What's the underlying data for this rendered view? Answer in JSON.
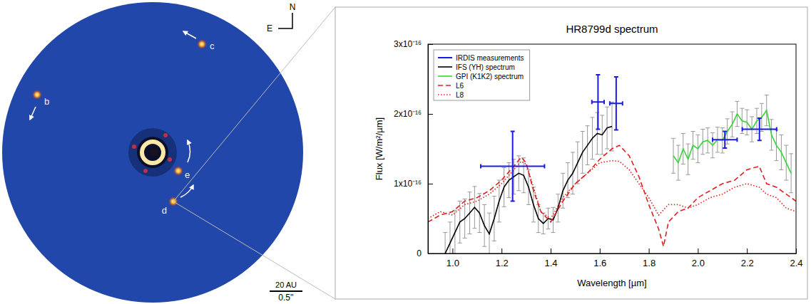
{
  "image_panel": {
    "compass": {
      "north": "N",
      "east": "E"
    },
    "planets": [
      "b",
      "c",
      "e",
      "d"
    ],
    "scale_bar": {
      "length": "20 AU",
      "angle": "0.5''"
    }
  },
  "chart_data": {
    "type": "line",
    "title": "HR8799d spectrum",
    "xlabel": "Wavelength [µm]",
    "ylabel": "Flux [W/m²/µm]",
    "xlim": [
      0.9,
      2.4
    ],
    "xticks": [
      {
        "value": 1,
        "label": "1.0"
      },
      1.2,
      1.4,
      1.6,
      1.8,
      {
        "value": 2,
        "label": "2.0"
      },
      2.2,
      2.4
    ],
    "ylim": [
      0,
      3e-16
    ],
    "yticks": [
      0,
      {
        "value": 1e-16,
        "label": "1x10⁻¹⁶"
      },
      {
        "value": 2e-16,
        "label": "2x10⁻¹⁶"
      },
      {
        "value": 3e-16,
        "label": "3x10⁻¹⁶"
      }
    ],
    "grid": false,
    "legend": "upper left",
    "series": [
      {
        "name": "IRDIS measurements",
        "type": "errorbar",
        "color": "#1c1ce0",
        "x": [
          1.245,
          1.593,
          1.667,
          2.11,
          2.251
        ],
        "values": [
          1.25e-16,
          2.17e-16,
          2.15e-16,
          1.63e-16,
          1.78e-16
        ],
        "xerr": [
          0.13,
          0.025,
          0.026,
          0.05,
          0.07
        ],
        "yerr": [
          5e-17,
          3.9e-17,
          3.8e-17,
          1.2e-17,
          1.6e-17
        ]
      },
      {
        "name": "IFS (YH) spectrum",
        "type": "line",
        "color": "#000000",
        "line_style": "solid",
        "x": [
          0.97,
          0.99,
          1.01,
          1.03,
          1.05,
          1.07,
          1.09,
          1.11,
          1.13,
          1.15,
          1.17,
          1.19,
          1.21,
          1.23,
          1.25,
          1.27,
          1.29,
          1.31,
          1.33,
          1.35,
          1.37,
          1.39,
          1.41,
          1.43,
          1.45,
          1.47,
          1.49,
          1.51,
          1.53,
          1.55,
          1.57,
          1.59,
          1.61,
          1.63,
          1.65
        ],
        "values": [
          0,
          1.5e-17,
          3e-17,
          4.5e-17,
          5e-17,
          5.8e-17,
          6.6e-17,
          5.8e-17,
          4e-17,
          2.8e-17,
          5e-17,
          7.5e-17,
          9.5e-17,
          1.05e-16,
          1.1e-16,
          1.15e-16,
          1.12e-16,
          9.5e-17,
          7e-17,
          5e-17,
          4.3e-17,
          5e-17,
          4.8e-17,
          6.5e-17,
          9e-17,
          1.05e-16,
          1.15e-16,
          1.3e-16,
          1.45e-16,
          1.55e-16,
          1.65e-16,
          1.72e-16,
          1.7e-16,
          1.8e-16,
          1.82e-16
        ],
        "yerr": [
          3e-17,
          3e-17,
          3.2e-17,
          3e-17,
          2.8e-17,
          3e-17,
          3e-17,
          2.8e-17,
          3e-17,
          3e-17,
          3.2e-17,
          3e-17,
          2.8e-17,
          2.5e-17,
          2.5e-17,
          2.5e-17,
          2.5e-17,
          2.5e-17,
          2.5e-17,
          2e-17,
          1.5e-17,
          1.5e-17,
          1.8e-17,
          2e-17,
          2.5e-17,
          2.5e-17,
          3e-17,
          3e-17,
          3e-17,
          2.8e-17,
          3e-17,
          3e-17,
          2.8e-17,
          3e-17,
          3.5e-17
        ]
      },
      {
        "name": "GPI (K1K2) spectrum",
        "type": "line",
        "color": "#33d633",
        "line_style": "solid",
        "x": [
          1.9,
          1.92,
          1.94,
          1.96,
          1.98,
          2.0,
          2.02,
          2.04,
          2.06,
          2.08,
          2.1,
          2.12,
          2.14,
          2.16,
          2.18,
          2.2,
          2.22,
          2.24,
          2.26,
          2.28,
          2.3,
          2.32,
          2.34,
          2.36,
          2.38
        ],
        "values": [
          1.4e-16,
          1.3e-16,
          1.5e-16,
          1.35e-16,
          1.55e-16,
          1.5e-16,
          1.6e-16,
          1.62e-16,
          1.55e-16,
          1.63e-16,
          1.62e-16,
          1.75e-16,
          1.85e-16,
          2e-16,
          1.9e-16,
          1.88e-16,
          1.78e-16,
          1.9e-16,
          1.95e-16,
          2.05e-16,
          1.7e-16,
          1.55e-16,
          1.45e-16,
          1.3e-16,
          1.15e-16
        ],
        "yerr": [
          2.5e-17,
          2.5e-17,
          2.2e-17,
          2.2e-17,
          2e-17,
          2e-17,
          1.8e-17,
          1.8e-17,
          1.8e-17,
          1.8e-17,
          1.8e-17,
          1.8e-17,
          1.8e-17,
          1.8e-17,
          1.8e-17,
          1.8e-17,
          1.8e-17,
          1.8e-17,
          2e-17,
          2.2e-17,
          2.2e-17,
          2.2e-17,
          2.5e-17,
          2.5e-17,
          2.8e-17
        ]
      },
      {
        "name": "L6",
        "type": "line",
        "color": "#e02020",
        "line_style": "dashed",
        "x": [
          0.9,
          0.95,
          1.0,
          1.05,
          1.1,
          1.15,
          1.2,
          1.25,
          1.28,
          1.3,
          1.33,
          1.36,
          1.4,
          1.45,
          1.5,
          1.55,
          1.6,
          1.65,
          1.68,
          1.72,
          1.76,
          1.8,
          1.84,
          1.86,
          1.88,
          1.92,
          1.96,
          2.0,
          2.05,
          2.1,
          2.15,
          2.2,
          2.25,
          2.28,
          2.32,
          2.36,
          2.4
        ],
        "values": [
          4.5e-17,
          5.5e-17,
          6e-17,
          7.5e-17,
          8e-17,
          9e-17,
          1.05e-16,
          1.25e-16,
          1.38e-16,
          1.3e-16,
          9e-17,
          6e-17,
          4.5e-17,
          7.5e-17,
          1e-16,
          1.15e-16,
          1.35e-16,
          1.5e-16,
          1.55e-16,
          1.4e-16,
          1.1e-16,
          7e-17,
          3.5e-17,
          1e-17,
          4.5e-17,
          6e-17,
          6.5e-17,
          8e-17,
          9e-17,
          1e-16,
          1.05e-16,
          1.2e-16,
          1.25e-16,
          1e-16,
          9.5e-17,
          8.5e-17,
          7.5e-17
        ]
      },
      {
        "name": "L8",
        "type": "line",
        "color": "#e02020",
        "line_style": "dotted",
        "x": [
          0.9,
          0.95,
          1.0,
          1.05,
          1.1,
          1.15,
          1.2,
          1.25,
          1.28,
          1.3,
          1.33,
          1.36,
          1.4,
          1.45,
          1.5,
          1.55,
          1.6,
          1.65,
          1.68,
          1.72,
          1.76,
          1.8,
          1.84,
          1.88,
          1.92,
          1.96,
          2.0,
          2.05,
          2.1,
          2.15,
          2.2,
          2.25,
          2.28,
          2.32,
          2.36,
          2.4
        ],
        "values": [
          5e-17,
          6e-17,
          5.5e-17,
          7e-17,
          7.5e-17,
          8.5e-17,
          1e-16,
          1.2e-16,
          1.32e-16,
          1.28e-16,
          9.5e-17,
          6e-17,
          5e-17,
          8e-17,
          1e-16,
          1.15e-16,
          1.3e-16,
          1.33e-16,
          1.32e-16,
          1.2e-16,
          1e-16,
          8e-17,
          5.5e-17,
          7e-17,
          7e-17,
          6.5e-17,
          7e-17,
          8e-17,
          8.5e-17,
          9.5e-17,
          1e-16,
          9.5e-17,
          8.5e-17,
          8e-17,
          6.5e-17,
          6e-17
        ]
      }
    ]
  }
}
